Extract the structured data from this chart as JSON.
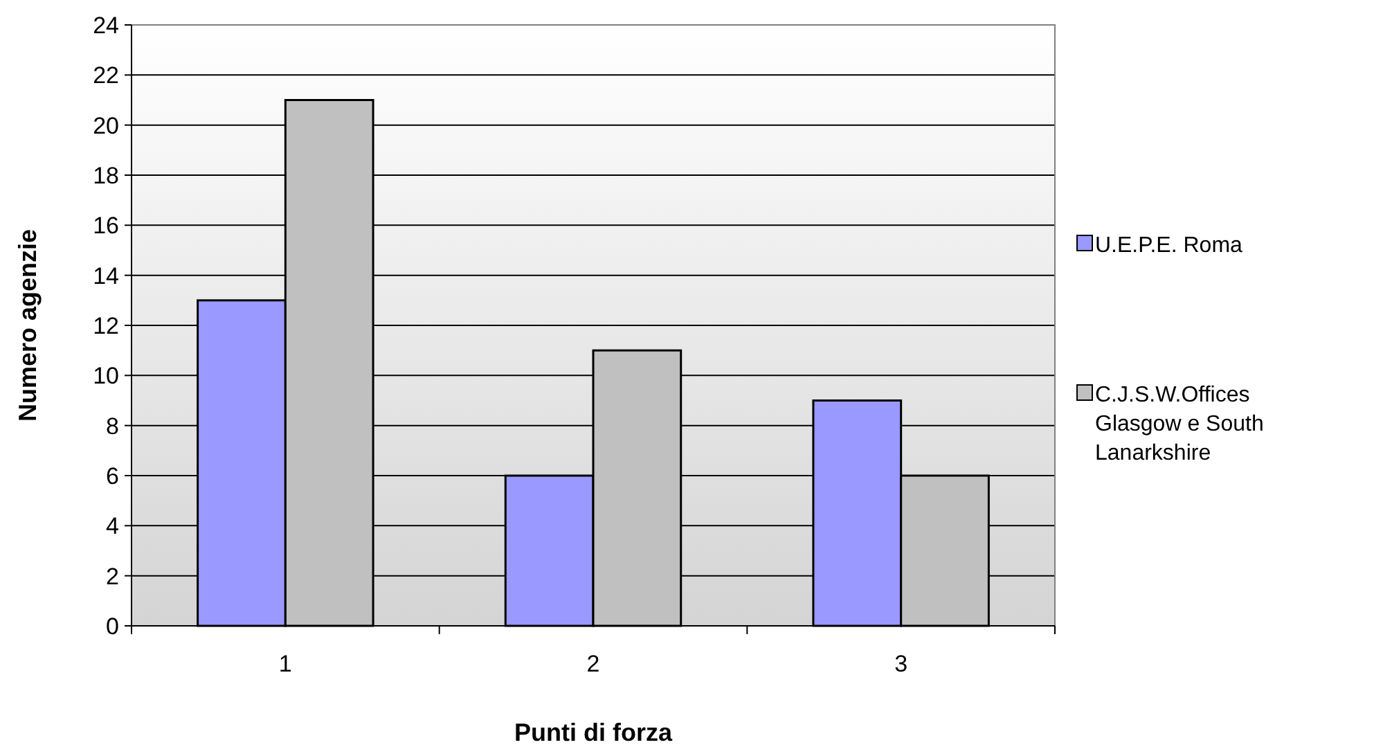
{
  "chart_data": {
    "type": "bar",
    "xlabel": "Punti di forza",
    "ylabel": "Numero agenzie",
    "categories": [
      "1",
      "2",
      "3"
    ],
    "series": [
      {
        "name": "U.E.P.E. Roma",
        "color": "#9999ff",
        "values": [
          13,
          6,
          9
        ]
      },
      {
        "name": "C.J.S.W.Offices Glasgow e South Lanarkshire",
        "color": "#c0c0c0",
        "values": [
          21,
          11,
          6
        ]
      }
    ],
    "ylim": [
      0,
      24
    ],
    "yticks": [
      0,
      2,
      4,
      6,
      8,
      10,
      12,
      14,
      16,
      18,
      20,
      22,
      24
    ],
    "grid": "y",
    "legend": "right"
  }
}
